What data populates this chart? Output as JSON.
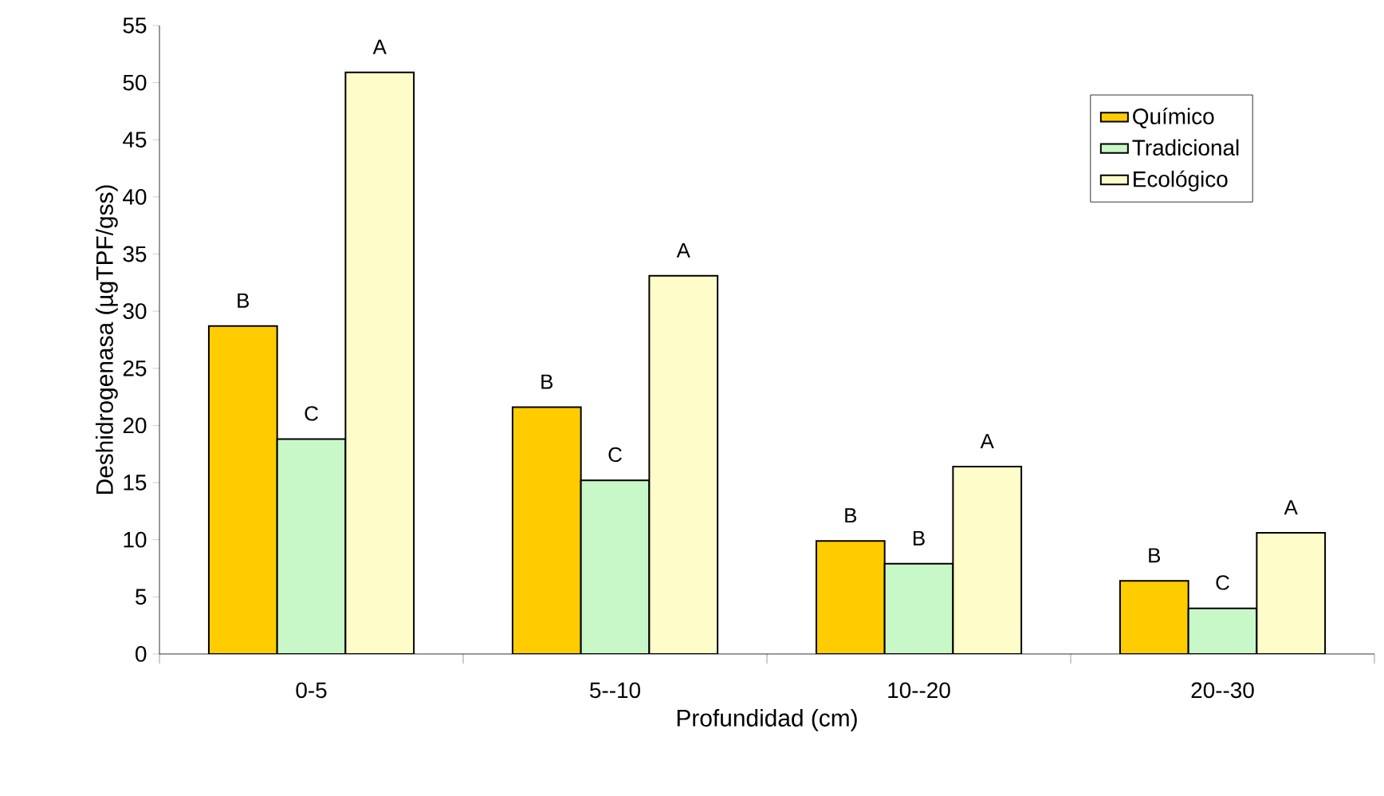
{
  "chart_data": {
    "type": "bar",
    "xlabel": "Profundidad (cm)",
    "ylabel": "Deshidrogenasa (µgTPF/gss)",
    "categories": [
      "0-5",
      "5--10",
      "10--20",
      "20--30"
    ],
    "series": [
      {
        "name": "Químico",
        "color": "#ffcc00",
        "values": [
          28.7,
          21.6,
          9.9,
          6.4
        ],
        "value_labels": [
          "B",
          "B",
          "B",
          "B"
        ]
      },
      {
        "name": "Tradicional",
        "color": "#c8f7c8",
        "values": [
          18.8,
          15.2,
          7.9,
          4.0
        ],
        "value_labels": [
          "C",
          "C",
          "B",
          "C"
        ]
      },
      {
        "name": "Ecológico",
        "color": "#fefcc8",
        "values": [
          50.9,
          33.1,
          16.4,
          10.6
        ],
        "value_labels": [
          "A",
          "A",
          "A",
          "A"
        ]
      }
    ],
    "ylim": [
      0,
      55
    ],
    "yticks": [
      0,
      5,
      10,
      15,
      20,
      25,
      30,
      35,
      40,
      45,
      50,
      55
    ],
    "grid": false,
    "legend": "top right"
  }
}
